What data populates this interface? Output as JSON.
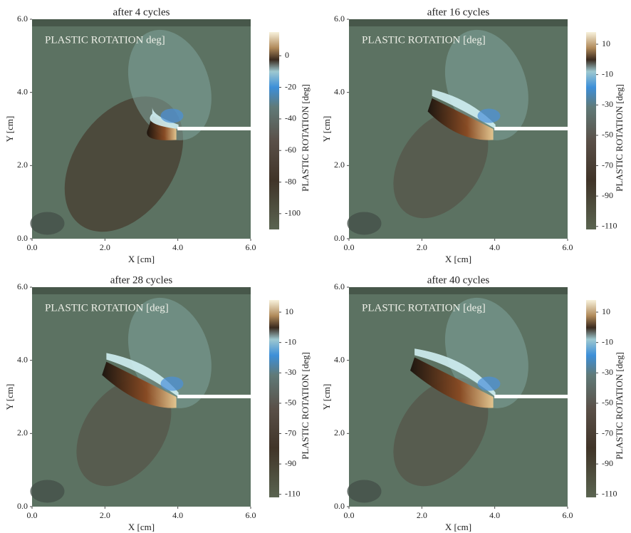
{
  "chart_data": [
    {
      "type": "contour",
      "title": "after 4 cycles",
      "annotation": "PLASTIC ROTATION deg]",
      "xlabel": "X [cm]",
      "ylabel": "Y [cm]",
      "xlim": [
        0,
        6
      ],
      "ylim": [
        0,
        6
      ],
      "xticks": [
        {
          "value": 0,
          "label": "0.0"
        },
        {
          "value": 2,
          "label": "2.0"
        },
        {
          "value": 4,
          "label": "4.0"
        },
        {
          "value": 6,
          "label": "6.0"
        }
      ],
      "yticks": [
        {
          "value": 0,
          "label": "0.0"
        },
        {
          "value": 2,
          "label": "2.0"
        },
        {
          "value": 4,
          "label": "4.0"
        },
        {
          "value": 6,
          "label": "6.0"
        }
      ],
      "colorbar": {
        "label": "PLASTIC ROTATION [deg]",
        "lim": [
          -110,
          15
        ],
        "ticks": [
          0,
          -20,
          -40,
          -60,
          -80,
          -100
        ]
      }
    },
    {
      "type": "contour",
      "title": "after 16 cycles",
      "annotation": "PLASTIC ROTATION [deg]",
      "xlabel": "X [cm]",
      "ylabel": "Y [cm]",
      "xlim": [
        0,
        6
      ],
      "ylim": [
        0,
        6
      ],
      "xticks": [
        {
          "value": 0,
          "label": "0.0"
        },
        {
          "value": 2,
          "label": "2.0"
        },
        {
          "value": 4,
          "label": "4.0"
        },
        {
          "value": 6,
          "label": "6.0"
        }
      ],
      "yticks": [
        {
          "value": 0,
          "label": "0.0"
        },
        {
          "value": 2,
          "label": "2.0"
        },
        {
          "value": 4,
          "label": "4.0"
        },
        {
          "value": 6,
          "label": "6.0"
        }
      ],
      "colorbar": {
        "label": "PLASTIC ROTATION [deg]",
        "lim": [
          -112,
          18
        ],
        "ticks": [
          10,
          -10,
          -30,
          -50,
          -70,
          -90,
          -110
        ]
      }
    },
    {
      "type": "contour",
      "title": "after 28 cycles",
      "annotation": "PLASTIC ROTATION [deg]",
      "xlabel": "X [cm]",
      "ylabel": "Y [cm]",
      "xlim": [
        0,
        6
      ],
      "ylim": [
        0,
        6
      ],
      "xticks": [
        {
          "value": 0,
          "label": "0.0"
        },
        {
          "value": 2,
          "label": "2.0"
        },
        {
          "value": 4,
          "label": "4.0"
        },
        {
          "value": 6,
          "label": "6.0"
        }
      ],
      "yticks": [
        {
          "value": 0,
          "label": "0.0"
        },
        {
          "value": 2,
          "label": "2.0"
        },
        {
          "value": 4,
          "label": "4.0"
        },
        {
          "value": 6,
          "label": "6.0"
        }
      ],
      "colorbar": {
        "label": "PLASTIC ROTATION [deg]",
        "lim": [
          -112,
          18
        ],
        "ticks": [
          10,
          -10,
          -30,
          -50,
          -70,
          -90,
          -110
        ]
      }
    },
    {
      "type": "contour",
      "title": "after 40 cycles",
      "annotation": "PLASTIC ROTATION [deg]",
      "xlabel": "X [cm]",
      "ylabel": "Y [cm]",
      "xlim": [
        0,
        6
      ],
      "ylim": [
        0,
        6
      ],
      "xticks": [
        {
          "value": 0,
          "label": "0.0"
        },
        {
          "value": 2,
          "label": "2.0"
        },
        {
          "value": 4,
          "label": "4.0"
        },
        {
          "value": 6,
          "label": "6.0"
        }
      ],
      "yticks": [
        {
          "value": 0,
          "label": "0.0"
        },
        {
          "value": 2,
          "label": "2.0"
        },
        {
          "value": 4,
          "label": "4.0"
        },
        {
          "value": 6,
          "label": "6.0"
        }
      ],
      "colorbar": {
        "label": "PLASTIC ROTATION [deg]",
        "lim": [
          -112,
          18
        ],
        "ticks": [
          10,
          -10,
          -30,
          -50,
          -70,
          -90,
          -110
        ]
      }
    }
  ]
}
